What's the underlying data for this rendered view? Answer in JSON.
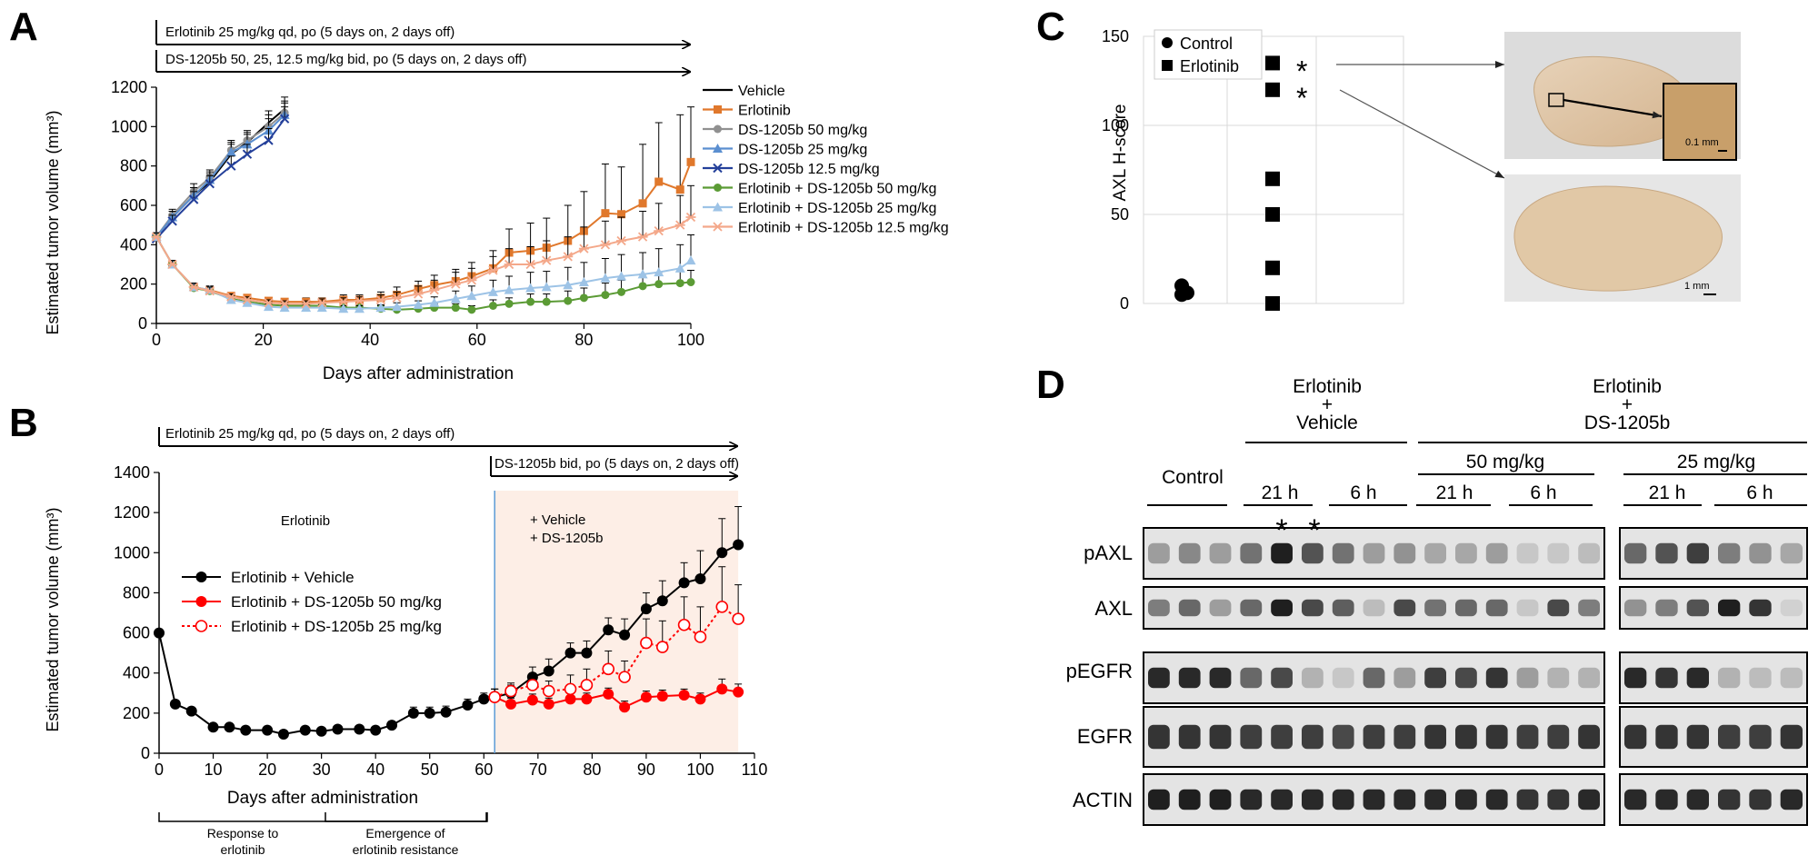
{
  "panels": {
    "A": "A",
    "B": "B",
    "C": "C",
    "D": "D"
  },
  "chart_data": [
    {
      "id": "A",
      "type": "line",
      "treatment_arrows": [
        "Erlotinib 25 mg/kg qd, po (5 days on, 2 days off)",
        "DS-1205b  50, 25, 12.5 mg/kg bid, po (5 days on, 2 days off)"
      ],
      "xlabel": "Days after administration",
      "ylabel": "Estimated tumor volume (mm³)",
      "xlim": [
        0,
        100
      ],
      "ylim": [
        0,
        1200
      ],
      "xticks": [
        0,
        20,
        40,
        60,
        80,
        100
      ],
      "yticks": [
        0,
        200,
        400,
        600,
        800,
        1000,
        1200
      ],
      "legend_position": "right",
      "series": [
        {
          "name": "Vehicle",
          "color": "#000000",
          "marker": "none",
          "x": [
            0,
            3,
            7,
            10,
            14,
            17,
            21,
            24
          ],
          "values": [
            440,
            540,
            650,
            720,
            860,
            920,
            1020,
            1090
          ],
          "err": [
            20,
            30,
            40,
            40,
            50,
            50,
            60,
            60
          ]
        },
        {
          "name": "Erlotinib",
          "color": "#e0782c",
          "marker": "square",
          "x": [
            0,
            3,
            7,
            10,
            14,
            17,
            21,
            24,
            28,
            31,
            35,
            38,
            42,
            45,
            49,
            52,
            56,
            59,
            63,
            66,
            70,
            73,
            77,
            80,
            84,
            87,
            91,
            94,
            98,
            100
          ],
          "values": [
            440,
            300,
            185,
            170,
            140,
            130,
            115,
            110,
            110,
            110,
            120,
            120,
            130,
            145,
            175,
            195,
            215,
            240,
            280,
            360,
            370,
            385,
            420,
            470,
            560,
            555,
            610,
            720,
            680,
            820
          ],
          "err": [
            20,
            20,
            20,
            20,
            15,
            15,
            15,
            15,
            20,
            20,
            25,
            25,
            30,
            40,
            40,
            50,
            60,
            70,
            90,
            120,
            140,
            150,
            180,
            200,
            250,
            240,
            300,
            300,
            380,
            280
          ]
        },
        {
          "name": "DS-1205b 50 mg/kg",
          "color": "#909090",
          "marker": "circle",
          "x": [
            0,
            3,
            7,
            10,
            14,
            17,
            21,
            24
          ],
          "values": [
            440,
            550,
            670,
            740,
            880,
            930,
            1000,
            1070
          ],
          "err": [
            20,
            30,
            40,
            40,
            50,
            50,
            60,
            60
          ]
        },
        {
          "name": "DS-1205b 25 mg/kg",
          "color": "#5b8fd0",
          "marker": "triangle",
          "x": [
            0,
            3,
            7,
            10,
            14,
            17,
            21,
            24
          ],
          "values": [
            440,
            540,
            650,
            730,
            870,
            910,
            980,
            1060
          ],
          "err": [
            20,
            30,
            40,
            40,
            50,
            50,
            60,
            60
          ]
        },
        {
          "name": "DS-1205b 12.5 mg/kg",
          "color": "#24409a",
          "marker": "x",
          "x": [
            0,
            3,
            7,
            10,
            14,
            17,
            21,
            24
          ],
          "values": [
            430,
            520,
            630,
            710,
            800,
            860,
            930,
            1040
          ],
          "err": [
            20,
            30,
            40,
            40,
            50,
            50,
            60,
            60
          ]
        },
        {
          "name": "Erlotinib + DS-1205b 50 mg/kg",
          "color": "#5b9b35",
          "marker": "circle",
          "x": [
            0,
            3,
            7,
            10,
            14,
            17,
            21,
            24,
            28,
            31,
            35,
            38,
            42,
            45,
            49,
            52,
            56,
            59,
            63,
            66,
            70,
            73,
            77,
            80,
            84,
            87,
            91,
            94,
            98,
            100
          ],
          "values": [
            440,
            300,
            180,
            165,
            125,
            110,
            95,
            90,
            90,
            90,
            80,
            80,
            75,
            70,
            75,
            80,
            80,
            70,
            90,
            100,
            110,
            110,
            115,
            130,
            145,
            160,
            190,
            200,
            205,
            210
          ],
          "err": [
            20,
            20,
            20,
            20,
            15,
            15,
            15,
            15,
            15,
            15,
            15,
            15,
            15,
            15,
            20,
            20,
            20,
            20,
            30,
            30,
            40,
            40,
            50,
            50,
            60,
            60,
            60,
            60,
            60,
            60
          ]
        },
        {
          "name": "Erlotinib + DS-1205b 25 mg/kg",
          "color": "#9dc3e6",
          "marker": "triangle",
          "x": [
            0,
            3,
            7,
            10,
            14,
            17,
            21,
            24,
            28,
            31,
            35,
            38,
            42,
            45,
            49,
            52,
            56,
            59,
            63,
            66,
            70,
            73,
            77,
            80,
            84,
            87,
            91,
            94,
            98,
            100
          ],
          "values": [
            440,
            300,
            185,
            170,
            120,
            105,
            85,
            80,
            80,
            80,
            75,
            75,
            80,
            85,
            95,
            105,
            125,
            140,
            160,
            170,
            180,
            185,
            195,
            210,
            230,
            240,
            250,
            260,
            280,
            320
          ],
          "err": [
            20,
            20,
            20,
            20,
            15,
            15,
            15,
            15,
            15,
            15,
            15,
            15,
            15,
            20,
            20,
            30,
            40,
            50,
            60,
            70,
            80,
            80,
            90,
            100,
            100,
            110,
            110,
            120,
            120,
            130
          ]
        },
        {
          "name": "Erlotinib + DS-1205b 12.5 mg/kg",
          "color": "#f4a88a",
          "marker": "asterisk",
          "x": [
            0,
            3,
            7,
            10,
            14,
            17,
            21,
            24,
            28,
            31,
            35,
            38,
            42,
            45,
            49,
            52,
            56,
            59,
            63,
            66,
            70,
            73,
            77,
            80,
            84,
            87,
            91,
            94,
            98,
            100
          ],
          "values": [
            440,
            300,
            185,
            165,
            135,
            120,
            105,
            100,
            100,
            105,
            110,
            115,
            120,
            130,
            150,
            170,
            200,
            220,
            270,
            300,
            300,
            320,
            340,
            380,
            400,
            420,
            440,
            470,
            500,
            540
          ],
          "err": [
            20,
            20,
            20,
            20,
            15,
            15,
            15,
            15,
            15,
            20,
            20,
            20,
            25,
            30,
            40,
            50,
            60,
            60,
            70,
            80,
            90,
            100,
            100,
            110,
            120,
            120,
            130,
            140,
            150,
            160
          ]
        }
      ]
    },
    {
      "id": "B",
      "type": "line",
      "treatment_arrows": [
        "Erlotinib 25 mg/kg qd, po (5 days on, 2 days off)",
        "DS-1205b  bid, po (5 days on, 2 days off)"
      ],
      "annotations": [
        "Erlotinib",
        "+ Vehicle",
        "+ DS-1205b"
      ],
      "phase_labels": [
        [
          "Response to",
          "erlotinib"
        ],
        [
          "Emergence of",
          "erlotinib resistance"
        ]
      ],
      "xlabel": "Days after administration",
      "ylabel": "Estimated tumor volume (mm³)",
      "xlim": [
        0,
        110
      ],
      "ylim": [
        0,
        1400
      ],
      "xticks": [
        0,
        10,
        20,
        30,
        40,
        50,
        60,
        70,
        80,
        90,
        100,
        110
      ],
      "yticks": [
        0,
        200,
        400,
        600,
        800,
        1000,
        1200,
        1400
      ],
      "vline_x": 62,
      "shaded_range": [
        62,
        107
      ],
      "legend_position": "center-left",
      "series": [
        {
          "name": "Erlotinib + Vehicle",
          "color": "#000000",
          "marker": "circle",
          "dash": false,
          "x": [
            0,
            3,
            6,
            10,
            13,
            16,
            20,
            23,
            27,
            30,
            33,
            37,
            40,
            43,
            47,
            50,
            53,
            57,
            60,
            62,
            65,
            69,
            72,
            76,
            79,
            83,
            86,
            90,
            93,
            97,
            100,
            104,
            107
          ],
          "values": [
            600,
            245,
            210,
            130,
            130,
            115,
            115,
            95,
            115,
            110,
            120,
            120,
            115,
            140,
            200,
            200,
            205,
            240,
            270,
            280,
            300,
            380,
            410,
            500,
            500,
            615,
            590,
            720,
            760,
            850,
            870,
            1000,
            1040
          ],
          "err": [
            0,
            10,
            10,
            10,
            10,
            10,
            10,
            10,
            10,
            10,
            10,
            10,
            10,
            10,
            30,
            30,
            30,
            30,
            30,
            40,
            40,
            50,
            60,
            50,
            60,
            60,
            80,
            80,
            100,
            100,
            140,
            170,
            190
          ]
        },
        {
          "name": "Erlotinib + DS-1205b 50 mg/kg",
          "color": "#ff0000",
          "marker": "circle",
          "dash": false,
          "x": [
            62,
            65,
            69,
            72,
            76,
            79,
            83,
            86,
            90,
            93,
            97,
            100,
            104,
            107
          ],
          "values": [
            280,
            245,
            265,
            245,
            270,
            270,
            295,
            230,
            280,
            285,
            290,
            270,
            320,
            305
          ],
          "err": [
            40,
            30,
            30,
            30,
            30,
            30,
            30,
            30,
            30,
            30,
            30,
            30,
            50,
            40
          ]
        },
        {
          "name": "Erlotinib + DS-1205b 25 mg/kg",
          "color": "#ff0000",
          "marker": "open-circle",
          "dash": true,
          "x": [
            62,
            65,
            69,
            72,
            76,
            79,
            83,
            86,
            90,
            93,
            97,
            100,
            104,
            107
          ],
          "values": [
            280,
            310,
            340,
            310,
            320,
            340,
            420,
            380,
            550,
            530,
            640,
            580,
            730,
            670
          ],
          "err": [
            40,
            40,
            50,
            50,
            70,
            80,
            90,
            80,
            120,
            130,
            140,
            150,
            200,
            170
          ]
        }
      ]
    },
    {
      "id": "C",
      "type": "scatter",
      "ylabel": "AXL H-score",
      "ylim": [
        0,
        150
      ],
      "yticks": [
        0,
        50,
        100,
        150
      ],
      "legend_position": "top-left",
      "series": [
        {
          "name": "Control",
          "marker": "circle",
          "x": [
            1,
            1,
            1
          ],
          "values": [
            5,
            6,
            10
          ]
        },
        {
          "name": "Erlotinib",
          "marker": "square",
          "x": [
            2,
            2,
            2,
            2,
            2,
            2
          ],
          "values": [
            0,
            20,
            50,
            70,
            120,
            135
          ]
        }
      ],
      "asterisk_points": [
        135,
        120
      ],
      "scale_bars": [
        "0.1 mm",
        "1 mm"
      ]
    }
  ],
  "western_blot": {
    "group_top": [
      {
        "id": "vehicle",
        "lines": [
          "Erlotinib",
          "+",
          "Vehicle"
        ]
      },
      {
        "id": "ds",
        "lines": [
          "Erlotinib",
          "+",
          "DS-1205b"
        ]
      }
    ],
    "dose_labels": [
      "50 mg/kg",
      "25 mg/kg"
    ],
    "control_label": "Control",
    "time_labels": [
      "21 h",
      "6 h",
      "21 h",
      "6 h",
      "21 h",
      "6 h"
    ],
    "row_labels": [
      "pAXL",
      "AXL",
      "pEGFR",
      "EGFR",
      "ACTIN"
    ],
    "asterisk": "*"
  }
}
